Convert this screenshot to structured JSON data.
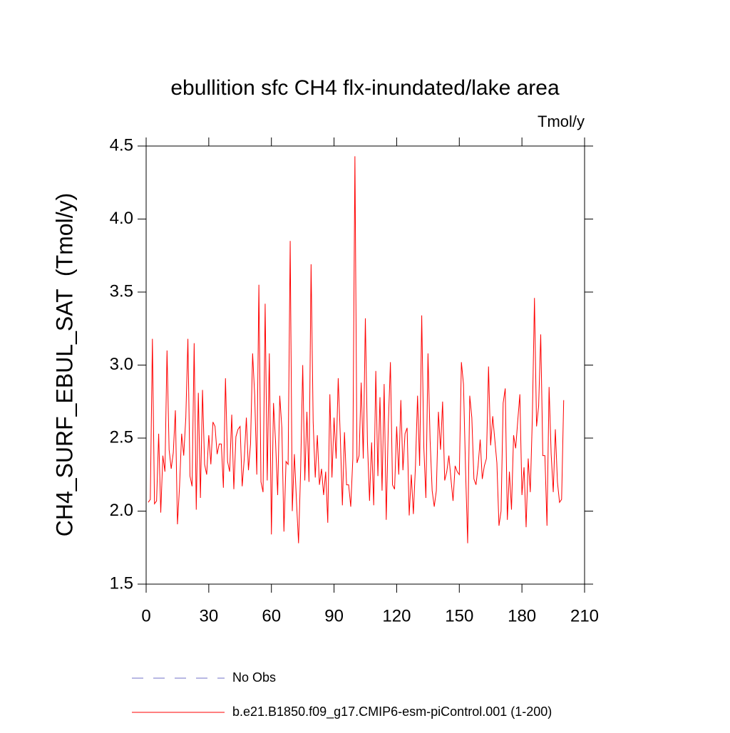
{
  "chart_data": {
    "type": "line",
    "title": "ebullition sfc CH4 flx-inundated/lake area",
    "units": "Tmol/y",
    "y_label": "CH4_SURF_EBUL_SAT  (Tmol/y)",
    "xlim": [
      0,
      210
    ],
    "xticks": [
      0,
      30,
      60,
      90,
      120,
      150,
      180,
      210
    ],
    "ylim": [
      1.5,
      4.5
    ],
    "yticks": [
      {
        "value": 1.5,
        "label": "1.5"
      },
      {
        "value": 2,
        "label": "2.0"
      },
      {
        "value": 2.5,
        "label": "2.5"
      },
      {
        "value": 3,
        "label": "3.0"
      },
      {
        "value": 3.5,
        "label": "3.5"
      },
      {
        "value": 4,
        "label": "4.0"
      },
      {
        "value": 4.5,
        "label": "4.5"
      }
    ],
    "legend_only": [
      {
        "name": "No Obs",
        "color": "#7070c8",
        "dashed": true
      }
    ],
    "x": [
      1,
      2,
      3,
      4,
      5,
      6,
      7,
      8,
      9,
      10,
      11,
      12,
      13,
      14,
      15,
      16,
      17,
      18,
      19,
      20,
      21,
      22,
      23,
      24,
      25,
      26,
      27,
      28,
      29,
      30,
      31,
      32,
      33,
      34,
      35,
      36,
      37,
      38,
      39,
      40,
      41,
      42,
      43,
      44,
      45,
      46,
      47,
      48,
      49,
      50,
      51,
      52,
      53,
      54,
      55,
      56,
      57,
      58,
      59,
      60,
      61,
      62,
      63,
      64,
      65,
      66,
      67,
      68,
      69,
      70,
      71,
      72,
      73,
      74,
      75,
      76,
      77,
      78,
      79,
      80,
      81,
      82,
      83,
      84,
      85,
      86,
      87,
      88,
      89,
      90,
      91,
      92,
      93,
      94,
      95,
      96,
      97,
      98,
      99,
      100,
      101,
      102,
      103,
      104,
      105,
      106,
      107,
      108,
      109,
      110,
      111,
      112,
      113,
      114,
      115,
      116,
      117,
      118,
      119,
      120,
      121,
      122,
      123,
      124,
      125,
      126,
      127,
      128,
      129,
      130,
      131,
      132,
      133,
      134,
      135,
      136,
      137,
      138,
      139,
      140,
      141,
      142,
      143,
      144,
      145,
      146,
      147,
      148,
      149,
      150,
      151,
      152,
      153,
      154,
      155,
      156,
      157,
      158,
      159,
      160,
      161,
      162,
      163,
      164,
      165,
      166,
      167,
      168,
      169,
      170,
      171,
      172,
      173,
      174,
      175,
      176,
      177,
      178,
      179,
      180,
      181,
      182,
      183,
      184,
      185,
      186,
      187,
      188,
      189,
      190,
      191,
      192,
      193,
      194,
      195,
      196,
      197,
      198,
      199,
      200
    ],
    "series": [
      {
        "name": "b.e21.B1850.f09_g17.CMIP6-esm-piControl.001 (1-200)",
        "color": "#ff0000",
        "values": [
          2.06,
          2.08,
          3.18,
          2.05,
          2.07,
          2.53,
          1.99,
          2.38,
          2.27,
          3.1,
          2.42,
          2.29,
          2.4,
          2.69,
          1.91,
          2.17,
          2.53,
          2.38,
          2.64,
          3.18,
          2.24,
          2.17,
          3.15,
          2.01,
          2.81,
          2.09,
          2.83,
          2.32,
          2.25,
          2.52,
          2.32,
          2.61,
          2.58,
          2.39,
          2.46,
          2.46,
          2.16,
          2.91,
          2.34,
          2.27,
          2.66,
          2.15,
          2.51,
          2.56,
          2.58,
          2.17,
          2.36,
          2.64,
          2.28,
          2.46,
          3.08,
          2.79,
          2.25,
          3.55,
          2.2,
          2.13,
          3.42,
          2.21,
          3.08,
          1.84,
          2.74,
          2.47,
          2.11,
          2.79,
          2.57,
          1.86,
          2.34,
          2.32,
          3.85,
          2.0,
          2.39,
          2.07,
          1.78,
          2.28,
          3.0,
          2.21,
          2.68,
          2.2,
          3.69,
          2.61,
          2.23,
          2.52,
          2.18,
          2.29,
          2.11,
          2.27,
          1.92,
          2.8,
          2.23,
          2.64,
          2.36,
          2.91,
          2.51,
          2.04,
          2.54,
          2.18,
          2.18,
          2.03,
          2.36,
          4.43,
          2.33,
          2.38,
          2.88,
          2.36,
          3.32,
          2.47,
          2.07,
          2.47,
          2.04,
          2.96,
          2.24,
          2.78,
          2.14,
          2.87,
          1.94,
          2.59,
          3.02,
          2.18,
          2.15,
          2.58,
          2.25,
          2.76,
          2.28,
          2.53,
          2.57,
          1.97,
          2.25,
          1.98,
          2.31,
          2.79,
          2.31,
          3.34,
          2.44,
          2.09,
          3.08,
          2.49,
          2.14,
          2.03,
          2.14,
          2.68,
          2.42,
          2.75,
          2.21,
          2.27,
          2.38,
          2.22,
          2.07,
          2.31,
          2.27,
          2.25,
          3.02,
          2.87,
          2.28,
          1.78,
          2.79,
          2.64,
          2.22,
          2.18,
          2.31,
          2.49,
          2.22,
          2.31,
          2.36,
          2.99,
          2.45,
          2.65,
          2.49,
          2.33,
          1.9,
          2.0,
          2.74,
          2.84,
          1.94,
          2.27,
          2.01,
          2.52,
          2.43,
          2.62,
          2.8,
          2.11,
          2.3,
          1.89,
          2.36,
          2.13,
          2.65,
          3.46,
          2.58,
          2.72,
          3.21,
          2.38,
          2.38,
          1.9,
          2.85,
          2.39,
          2.13,
          2.56,
          2.2,
          2.06,
          2.08,
          2.76
        ]
      }
    ]
  }
}
